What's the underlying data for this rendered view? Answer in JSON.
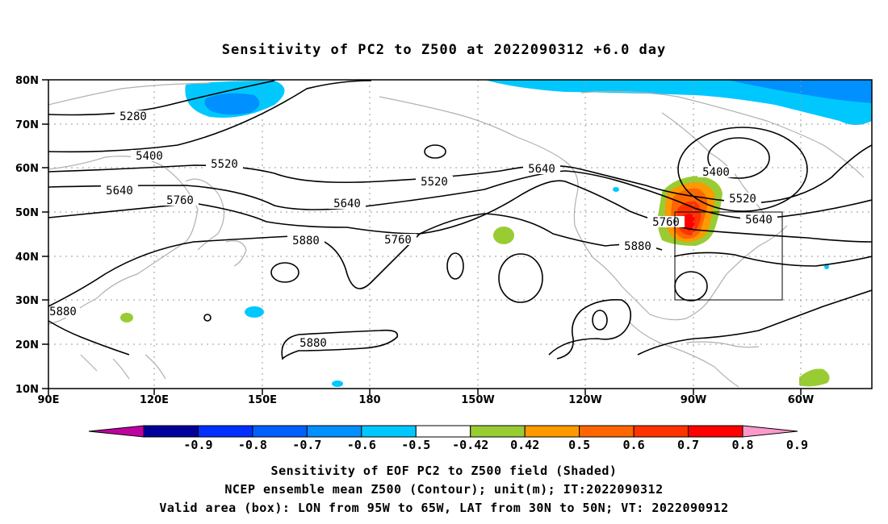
{
  "title": "Sensitivity of PC2 to Z500 at 2022090312 +6.0 day",
  "lat_labels": [
    "80N",
    "70N",
    "60N",
    "50N",
    "40N",
    "30N",
    "20N",
    "10N"
  ],
  "lon_labels": [
    "90E",
    "120E",
    "150E",
    "180",
    "150W",
    "120W",
    "90W",
    "60W"
  ],
  "contour_labels": [
    "5280",
    "5400",
    "5520",
    "5640",
    "5760",
    "5880",
    "5400",
    "5520",
    "5640",
    "5760",
    "5880",
    "5880",
    "5640",
    "5520",
    "5640",
    "5760",
    "5880"
  ],
  "colorbar": {
    "labels": [
      "-0.9",
      "-0.8",
      "-0.7",
      "-0.6",
      "-0.5",
      "-0.42",
      "0.42",
      "0.5",
      "0.6",
      "0.7",
      "0.8",
      "0.9"
    ],
    "colors": [
      "#c000a0",
      "#00009a",
      "#0030ff",
      "#0060ff",
      "#0090ff",
      "#00c8ff",
      "#ffffff",
      "#99cc33",
      "#ff9900",
      "#ff6600",
      "#ff3300",
      "#ff0000",
      "#ff99cc"
    ]
  },
  "valid_box": {
    "lon_west": "95W",
    "lon_east": "65W",
    "lat_south": "30N",
    "lat_north": "50N"
  },
  "captions": {
    "line1": "Sensitivity of EOF PC2 to Z500 field (Shaded)",
    "line2": "NCEP ensemble mean Z500 (Contour); unit(m); IT:2022090312",
    "line3": "Valid area (box): LON from 95W to 65W, LAT from 30N to 50N; VT: 2022090912"
  }
}
